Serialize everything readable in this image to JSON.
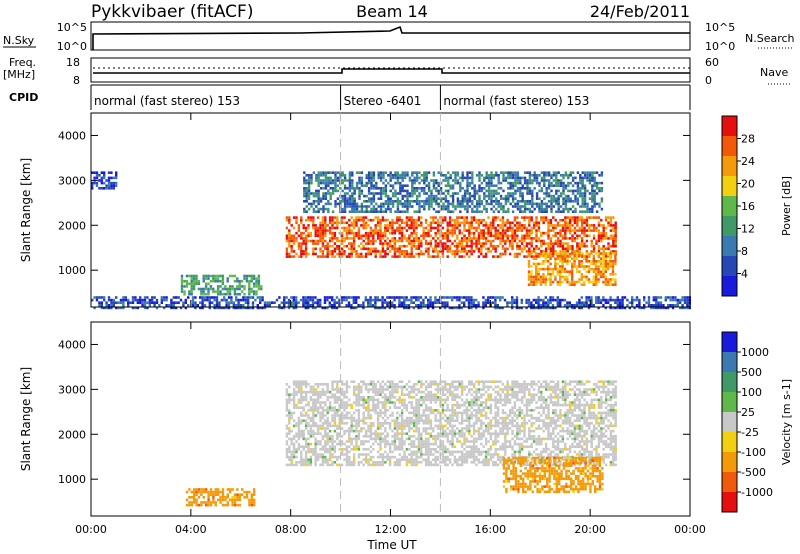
{
  "header": {
    "title": "Pykkvibaer (fitACF)",
    "beam": "Beam 14",
    "date": "24/Feb/2011"
  },
  "top_panels": {
    "nsky_label": "N.Sky",
    "nsearch_label": "N.Search",
    "nsky_ticks": [
      "10^5",
      "10^0"
    ],
    "nsearch_ticks": [
      "10^5",
      "10^0"
    ],
    "freq_label_line1": "Freq.",
    "freq_label_line2": "[MHz]",
    "freq_ticks": [
      "18",
      "8"
    ],
    "nave_label": "Nave",
    "nave_ticks": [
      "60",
      "0"
    ],
    "cpid_label": "CPID"
  },
  "cpid_segments": [
    {
      "label": "normal (fast stereo) 153",
      "start_hour": 0,
      "end_hour": 10
    },
    {
      "label": "Stereo -6401",
      "start_hour": 10,
      "end_hour": 14
    },
    {
      "label": "normal (fast stereo) 153",
      "start_hour": 14,
      "end_hour": 24
    }
  ],
  "colors": {
    "power_scale": [
      "#1a1adc",
      "#2648b4",
      "#3a7ab0",
      "#3f9a68",
      "#5fb84a",
      "#f2cf10",
      "#f59a0a",
      "#f25a0a",
      "#e60f0f"
    ],
    "velocity_scale": [
      "#e60f0f",
      "#f05a0a",
      "#f29a0a",
      "#f2cf10",
      "#c8c8c8",
      "#5fb84a",
      "#3f9a68",
      "#3a7ab0",
      "#1a1adc"
    ],
    "grey": "#c8c8c8"
  },
  "power_colorbar": {
    "label": "Power [dB]",
    "ticks": [
      "28",
      "24",
      "20",
      "16",
      "12",
      "8",
      "4"
    ]
  },
  "velocity_colorbar": {
    "label": "Velocity [m s-1]",
    "ticks": [
      "1000",
      "500",
      "100",
      "25",
      "-25",
      "-100",
      "-500",
      "-1000"
    ]
  },
  "chart_data": [
    {
      "type": "heatmap",
      "panel": "power",
      "ylabel": "Slant Range [km]",
      "xlim": [
        0,
        24
      ],
      "ylim": [
        180,
        4500
      ],
      "yticks": [
        1000,
        2000,
        3000,
        4000
      ],
      "regions": [
        {
          "name": "sea scatter",
          "t_start": 0.0,
          "t_end": 24.0,
          "r_low": 180,
          "r_high": 420,
          "level": 1
        },
        {
          "name": "early patch",
          "t_start": 3.6,
          "t_end": 6.8,
          "r_low": 450,
          "r_high": 900,
          "level": 3
        },
        {
          "name": "main band",
          "t_start": 7.8,
          "t_end": 21.0,
          "r_low": 1300,
          "r_high": 2200,
          "level": 7
        },
        {
          "name": "upper layer",
          "t_start": 8.5,
          "t_end": 20.5,
          "r_low": 2300,
          "r_high": 3200,
          "level": 2
        },
        {
          "name": "descending arc",
          "t_start": 17.5,
          "t_end": 21.0,
          "r_low": 700,
          "r_high": 1400,
          "level": 6
        },
        {
          "name": "early high",
          "t_start": 0.0,
          "t_end": 1.0,
          "r_low": 2800,
          "r_high": 3200,
          "level": 1
        }
      ]
    },
    {
      "type": "heatmap",
      "panel": "velocity",
      "ylabel": "Slant Range [km]",
      "xlabel": "Time UT",
      "xlim": [
        0,
        24
      ],
      "ylim": [
        180,
        4500
      ],
      "yticks": [
        1000,
        2000,
        3000,
        4000
      ],
      "xticks": [
        "00:00",
        "04:00",
        "08:00",
        "12:00",
        "16:00",
        "20:00",
        "00:00"
      ],
      "regions": [
        {
          "name": "main band",
          "t_start": 7.8,
          "t_end": 21.0,
          "r_low": 1300,
          "r_high": 3200,
          "level": 4
        },
        {
          "name": "early patch",
          "t_start": 3.8,
          "t_end": 6.5,
          "r_low": 450,
          "r_high": 800,
          "level": 2
        },
        {
          "name": "late patch",
          "t_start": 16.5,
          "t_end": 20.5,
          "r_low": 700,
          "r_high": 1500,
          "level": 2
        }
      ]
    }
  ]
}
